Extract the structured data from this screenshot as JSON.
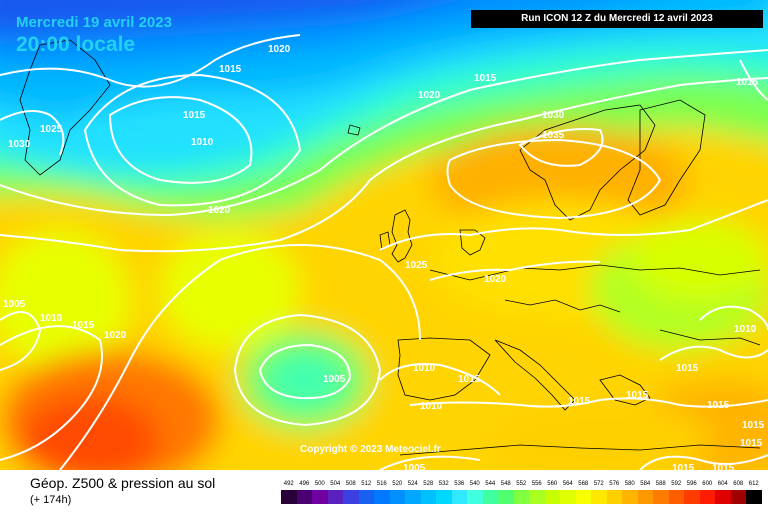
{
  "header": {
    "date": "Mercredi 19 avril 2023",
    "time": "20:00 locale",
    "run": "Run ICON 12 Z du Mercredi 12 avril 2023"
  },
  "copyright": "Copyright © 2023 Meteociel.fr",
  "legend": {
    "title": "Géop. Z500 & pression au sol",
    "subtitle": "(+ 174h)",
    "scale_values": [
      "492",
      "496",
      "500",
      "504",
      "508",
      "512",
      "516",
      "520",
      "524",
      "528",
      "532",
      "536",
      "540",
      "544",
      "548",
      "552",
      "556",
      "560",
      "564",
      "568",
      "572",
      "576",
      "580",
      "584",
      "588",
      "592",
      "596",
      "600",
      "604",
      "608",
      "612"
    ],
    "scale_colors": [
      "#2a0038",
      "#4a0070",
      "#7000a0",
      "#5a20c0",
      "#3c40e0",
      "#1860f0",
      "#0078ff",
      "#0090ff",
      "#00a8ff",
      "#00c0ff",
      "#00d8ff",
      "#30e8ff",
      "#40ffe0",
      "#40ffa0",
      "#50ff70",
      "#80ff40",
      "#a8ff20",
      "#c8ff00",
      "#e0ff00",
      "#f8ff00",
      "#ffe800",
      "#ffd000",
      "#ffb400",
      "#ff9800",
      "#ff7c00",
      "#ff5c00",
      "#ff3c00",
      "#ff1c00",
      "#e00000",
      "#a00000",
      "#000000"
    ]
  },
  "isobars": {
    "values": [
      "1020",
      "1015",
      "1030",
      "1025",
      "1015",
      "1010",
      "1020",
      "1015",
      "1015",
      "1030",
      "1035",
      "1020",
      "1025",
      "1020",
      "1005",
      "1010",
      "1015",
      "1020",
      "1005",
      "1010",
      "1015",
      "1010",
      "1015",
      "1015",
      "1015",
      "1010",
      "1015",
      "1015",
      "1015",
      "1005",
      "1015",
      "1015"
    ]
  }
}
